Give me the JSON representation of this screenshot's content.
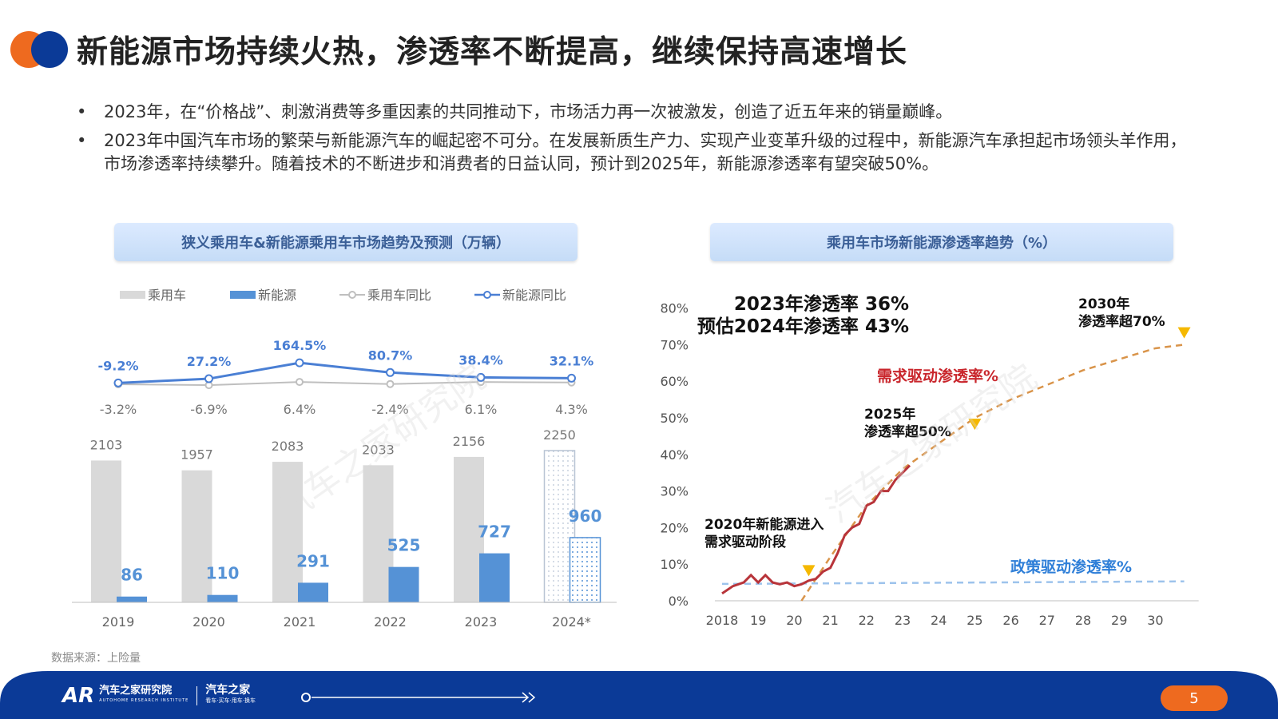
{
  "title": "新能源市场持续火热，渗透率不断提高，继续保持高速增长",
  "bullets": [
    "2023年，在“价格战”、刺激消费等多重因素的共同推动下，市场活力再一次被激发，创造了近五年来的销量巅峰。",
    "2023年中国汽车市场的繁荣与新能源汽车的崛起密不可分。在发展新质生产力、实现产业变革升级的过程中，新能源汽车承担起市场领头羊作用，市场渗透率持续攀升。随着技术的不断进步和消费者的日益认同，预计到2025年，新能源渗透率有望突破50%。"
  ],
  "bullet_char": "•",
  "source": "数据来源：上险量",
  "watermark": "汽车之家研究院",
  "page_number": "5",
  "footer": {
    "brand": "汽车之家研究院",
    "brand_sub": "AUTOHOME RESEARCH INSTITUTE",
    "brand2": "汽车之家",
    "brand2_sub": "看车·买车·用车·换车",
    "logo_mark": "AR"
  },
  "colors": {
    "orange": "#ee6a1f",
    "blue_dark": "#0b3a97",
    "bar_gray": "#d9d9d9",
    "bar_blue": "#5592d6",
    "line_blue": "#4a7fd4",
    "line_gray": "#bfbfbf",
    "red_line": "#b8343a",
    "dashed_orange": "#d9944a",
    "dashed_blue": "#9dc3ec",
    "marker_yellow": "#f5b800"
  },
  "chart_data": [
    {
      "type": "bar",
      "title": "狭义乘用车&新能源乘用车市场趋势及预测（万辆）",
      "categories": [
        "2019",
        "2020",
        "2021",
        "2022",
        "2023",
        "2024*"
      ],
      "legend": [
        "乘用车",
        "新能源",
        "乘用车同比",
        "新能源同比"
      ],
      "series": [
        {
          "name": "乘用车",
          "values": [
            2103,
            1957,
            2083,
            2033,
            2156,
            2250
          ]
        },
        {
          "name": "新能源",
          "values": [
            86,
            110,
            291,
            525,
            727,
            960
          ]
        }
      ],
      "yoy_lines": [
        {
          "name": "乘用车同比",
          "labels": [
            "-3.2%",
            "-6.9%",
            "6.4%",
            "-2.4%",
            "6.1%",
            "4.3%"
          ]
        },
        {
          "name": "新能源同比",
          "labels": [
            "-9.2%",
            "27.2%",
            "164.5%",
            "80.7%",
            "38.4%",
            "32.1%"
          ]
        }
      ],
      "forecast_category": "2024*"
    },
    {
      "type": "line",
      "title": "乘用车市场新能源渗透率趋势（%）",
      "x_ticks": [
        "2018",
        "19",
        "20",
        "21",
        "22",
        "23",
        "24",
        "25",
        "26",
        "27",
        "28",
        "29",
        "30"
      ],
      "y_ticks": [
        "0%",
        "10%",
        "20%",
        "30%",
        "40%",
        "50%",
        "60%",
        "70%",
        "80%"
      ],
      "ylim": [
        0,
        80
      ],
      "xlim": [
        2018,
        2031
      ],
      "series": [
        {
          "name": "actual",
          "points": [
            [
              2018.0,
              2
            ],
            [
              2018.3,
              4
            ],
            [
              2018.6,
              5
            ],
            [
              2018.8,
              7
            ],
            [
              2019.0,
              5
            ],
            [
              2019.2,
              7
            ],
            [
              2019.4,
              5
            ],
            [
              2019.6,
              4.5
            ],
            [
              2019.8,
              5
            ],
            [
              2020.0,
              4
            ],
            [
              2020.2,
              4.5
            ],
            [
              2020.4,
              5.5
            ],
            [
              2020.6,
              6
            ],
            [
              2020.8,
              8
            ],
            [
              2021.0,
              9
            ],
            [
              2021.2,
              13
            ],
            [
              2021.4,
              18
            ],
            [
              2021.6,
              20
            ],
            [
              2021.8,
              21
            ],
            [
              2022.0,
              26
            ],
            [
              2022.2,
              27
            ],
            [
              2022.4,
              30
            ],
            [
              2022.6,
              30
            ],
            [
              2022.8,
              33
            ],
            [
              2023.0,
              35
            ],
            [
              2023.2,
              37
            ]
          ]
        },
        {
          "name": "需求驱动渗透率%",
          "points": [
            [
              2020.2,
              0
            ],
            [
              2021.0,
              12
            ],
            [
              2022.0,
              26
            ],
            [
              2023.0,
              36
            ],
            [
              2024.0,
              43
            ],
            [
              2025.0,
              50
            ],
            [
              2026.0,
              55
            ],
            [
              2027.0,
              59
            ],
            [
              2028.0,
              63
            ],
            [
              2029.0,
              66
            ],
            [
              2030.0,
              69
            ],
            [
              2030.8,
              70
            ]
          ]
        },
        {
          "name": "政策驱动渗透率%",
          "points": [
            [
              2018.0,
              4.6
            ],
            [
              2030.8,
              5.3
            ]
          ]
        }
      ],
      "annotations": {
        "headline1": "2023年渗透率 36%",
        "headline2": "预估2024年渗透率 43%",
        "demand_label": "需求驱动渗透率%",
        "policy_label": "政策驱动渗透率%",
        "m2020_line1": "2020年新能源进入",
        "m2020_line2": "需求驱动阶段",
        "m2025_line1": "2025年",
        "m2025_line2": "渗透率超50%",
        "m2030_line1": "2030年",
        "m2030_line2": "渗透率超70%"
      },
      "markers": [
        {
          "x": 2020.4,
          "y": 8
        },
        {
          "x": 2025.0,
          "y": 48
        },
        {
          "x": 2030.8,
          "y": 73
        }
      ]
    }
  ]
}
